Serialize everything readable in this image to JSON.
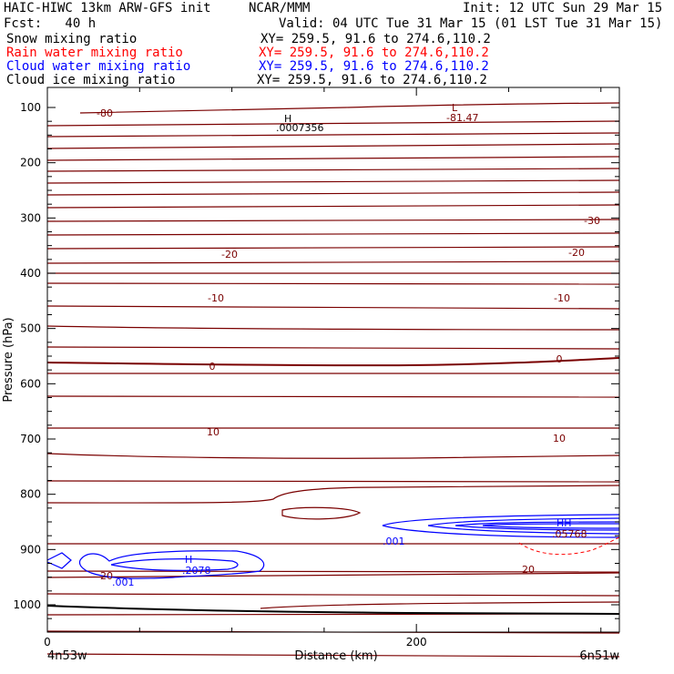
{
  "header": {
    "title": "HAIC-HIWC 13km ARW-GFS init",
    "org": "NCAR/MMM",
    "init": "Init: 12 UTC Sun 29 Mar 15",
    "fcst": "Fcst:   40 h",
    "valid": "Valid: 04 UTC Tue 31 Mar 15 (01 LST Tue 31 Mar 15)"
  },
  "fields": [
    {
      "name": "Snow mixing ratio",
      "xy": "XY= 259.5, 91.6 to 274.6,110.2",
      "color": "#000000"
    },
    {
      "name": "Rain water mixing ratio",
      "xy": "XY= 259.5, 91.6 to 274.6,110.2",
      "color": "#ff0000"
    },
    {
      "name": "Cloud water mixing ratio",
      "xy": "XY= 259.5, 91.6 to 274.6,110.2",
      "color": "#0000ff"
    },
    {
      "name": "Cloud ice mixing ratio",
      "xy": "XY= 259.5, 91.6 to 274.6,110.2",
      "color": "#000000"
    }
  ],
  "chart_data": {
    "type": "contour-cross-section",
    "xlabel": "Distance (km)",
    "ylabel": "Pressure (hPa)",
    "xlim": [
      0,
      310
    ],
    "ylim": [
      1040,
      80
    ],
    "x_ticks": [
      0,
      200
    ],
    "y_ticks": [
      100,
      200,
      300,
      400,
      500,
      600,
      700,
      800,
      900,
      1000
    ],
    "y_tick_labels": [
      "100",
      "200",
      "300",
      "400",
      "500",
      "600",
      "700",
      "800",
      "900",
      "1000"
    ],
    "x_tick_labels": [
      "0",
      "200"
    ],
    "left_endpoint": "4n53w",
    "right_endpoint": "6n51w",
    "temperature_contours": [
      {
        "label": "-80",
        "pressure_left": 108,
        "pressure_right": 100
      },
      {
        "label": "-30",
        "pressure_left": 300,
        "pressure_right": 300
      },
      {
        "label": "-20",
        "pressure_left": 365,
        "pressure_right": 370
      },
      {
        "label": "-10",
        "pressure_left": 445,
        "pressure_right": 445
      },
      {
        "label": "0",
        "pressure_left": 562,
        "pressure_right": 550
      },
      {
        "label": "10",
        "pressure_left": 670,
        "pressure_right": 700
      },
      {
        "label": "20",
        "pressure_left": 945,
        "pressure_right": 930
      }
    ],
    "annotations": [
      {
        "text": "H",
        "x": 130,
        "p": 112
      },
      {
        "text": ".0007356",
        "x": 130,
        "p": 128
      },
      {
        "text": "L",
        "x": 222,
        "p": 100
      },
      {
        "text": "-81.47",
        "x": 224,
        "p": 114
      },
      {
        "text": "H",
        "x": 77,
        "p": 918
      },
      {
        "text": ".2078",
        "x": 82,
        "p": 935
      },
      {
        "text": ".001",
        "x": 42,
        "p": 965
      },
      {
        "text": ".001",
        "x": 186,
        "p": 880
      },
      {
        "text": "HH",
        "x": 280,
        "p": 862
      },
      {
        "text": ".05768",
        "x": 281,
        "p": 877
      }
    ],
    "series": [
      {
        "name": "Cloud water mixing ratio",
        "color": "#0000ff"
      },
      {
        "name": "Rain water mixing ratio",
        "color": "#ff0000"
      },
      {
        "name": "Temperature",
        "color": "#7a0000"
      }
    ]
  }
}
